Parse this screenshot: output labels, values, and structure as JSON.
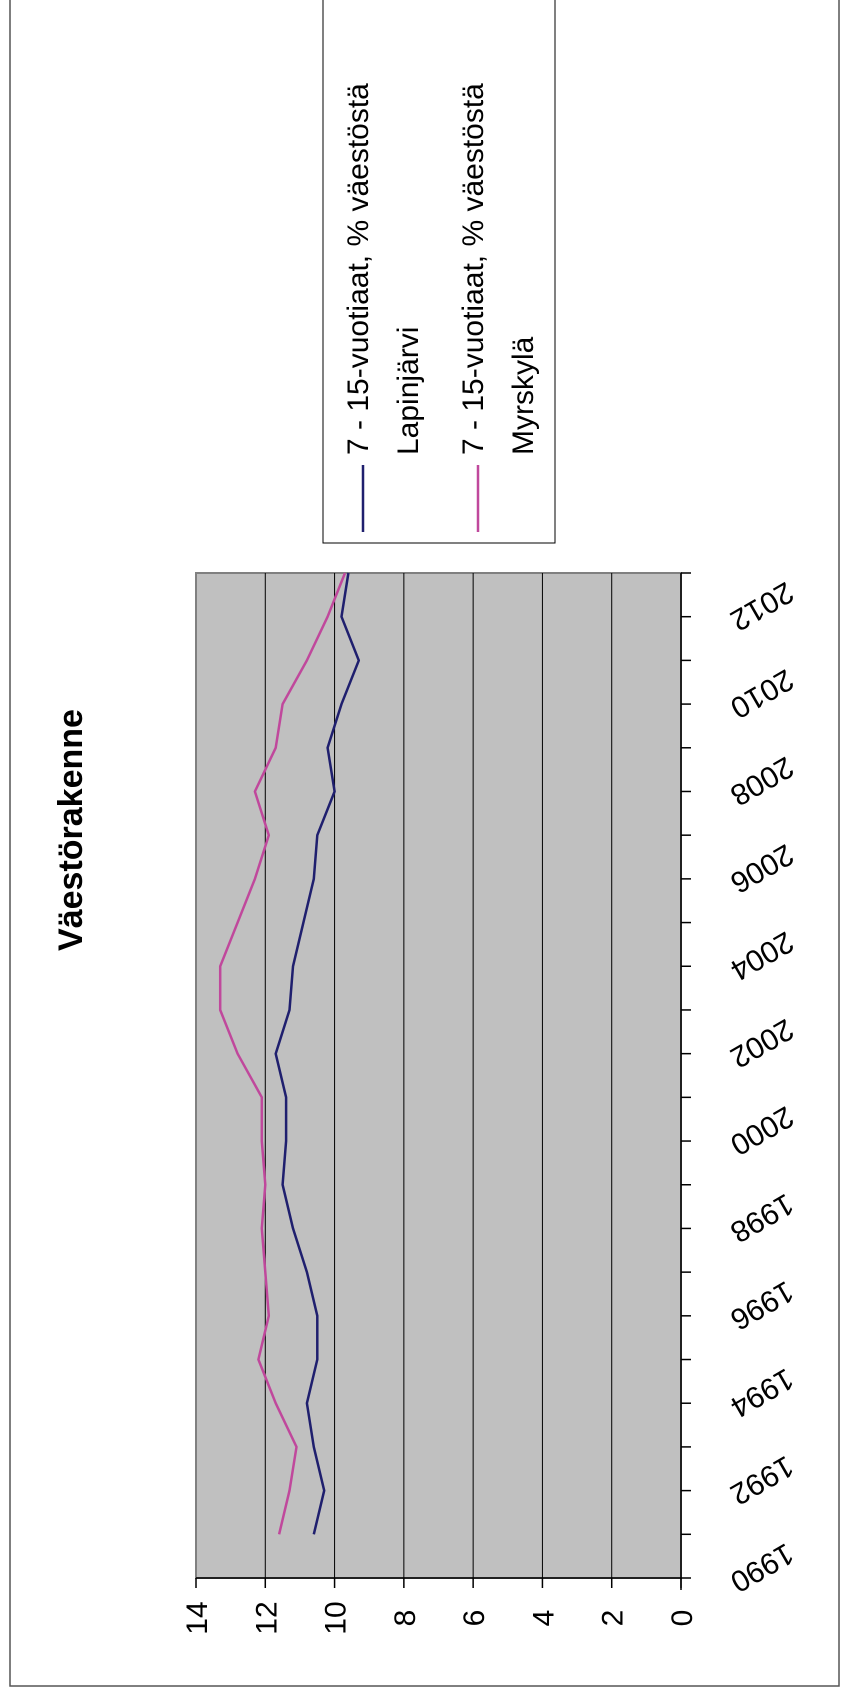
{
  "chart_data": {
    "type": "line",
    "title": "Väestörakenne",
    "xlabel": "",
    "ylabel": "",
    "ylim": [
      0,
      14
    ],
    "yticks": [
      0,
      2,
      4,
      6,
      8,
      10,
      12,
      14
    ],
    "xlim": [
      1990,
      2013
    ],
    "xticks": [
      1990,
      1992,
      1994,
      1996,
      1998,
      2000,
      2002,
      2004,
      2006,
      2008,
      2010,
      2012
    ],
    "x": [
      1991,
      1992,
      1993,
      1994,
      1995,
      1996,
      1997,
      1998,
      1999,
      2000,
      2001,
      2002,
      2003,
      2004,
      2005,
      2006,
      2007,
      2008,
      2009,
      2010,
      2011,
      2012,
      2013
    ],
    "grid": true,
    "legend_position": "right",
    "series": [
      {
        "name_lines": [
          "7 - 15-vuotiaat, % väestöstä",
          "Lapinjärvi"
        ],
        "color": "#1f1f6e",
        "values": [
          10.6,
          10.3,
          10.6,
          10.8,
          10.5,
          10.5,
          10.8,
          11.2,
          11.5,
          11.4,
          11.4,
          11.7,
          11.3,
          11.2,
          10.9,
          10.6,
          10.5,
          10.0,
          10.2,
          9.8,
          9.3,
          9.8,
          9.6
        ]
      },
      {
        "name_lines": [
          "7 - 15-vuotiaat, % väestöstä",
          "Myrskylä"
        ],
        "color": "#c0489c",
        "values": [
          11.6,
          11.3,
          11.1,
          11.7,
          12.2,
          11.9,
          12.0,
          12.1,
          12.0,
          12.1,
          12.1,
          12.8,
          13.3,
          13.3,
          12.8,
          12.3,
          11.9,
          12.3,
          11.7,
          11.5,
          10.8,
          10.2,
          9.7
        ]
      }
    ]
  }
}
